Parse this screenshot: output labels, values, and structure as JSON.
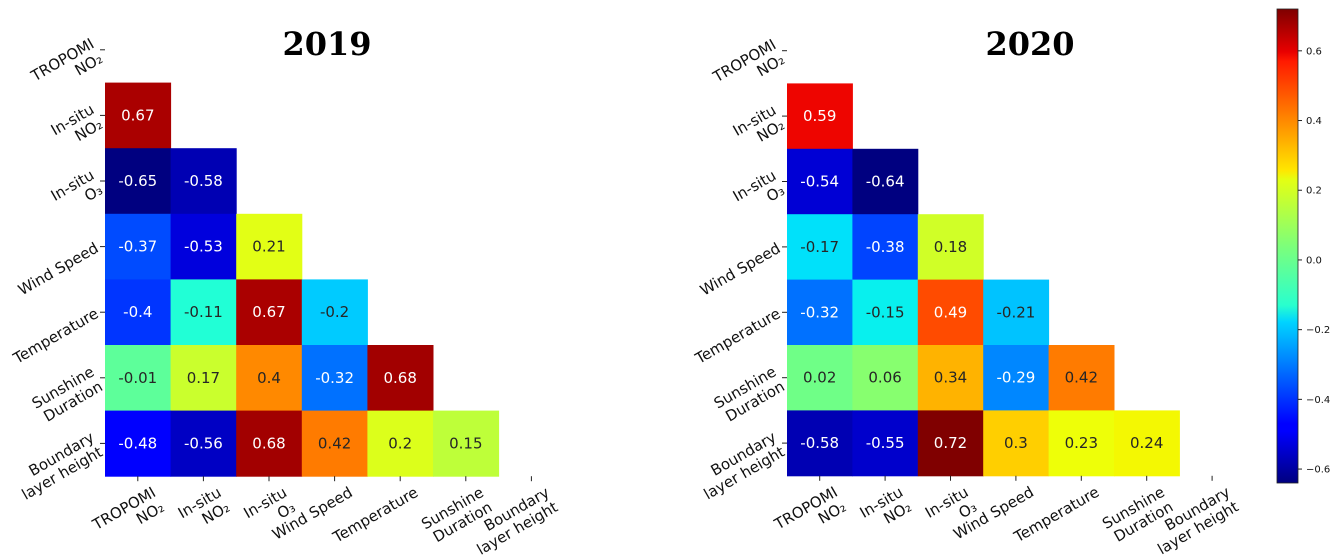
{
  "chart_data": [
    {
      "type": "heatmap",
      "title": "2019",
      "labels": [
        "TROPOMI NO₂",
        "In-situ NO₂",
        "In-situ O₃",
        "Wind Speed",
        "Temperature",
        "Sunshine Duration",
        "Boundary layer height"
      ],
      "label_lines": [
        [
          "TROPOMI",
          "NO₂"
        ],
        [
          "In-situ",
          "NO₂"
        ],
        [
          "In-situ",
          "O₃"
        ],
        [
          "Wind Speed"
        ],
        [
          "Temperature"
        ],
        [
          "Sunshine",
          "Duration"
        ],
        [
          "Boundary",
          "layer height"
        ]
      ],
      "lower_triangle": [
        [],
        [
          0.67
        ],
        [
          -0.65,
          -0.58
        ],
        [
          -0.37,
          -0.53,
          0.21
        ],
        [
          -0.4,
          -0.11,
          0.67,
          -0.2
        ],
        [
          -0.01,
          0.17,
          0.4,
          -0.32,
          0.68
        ],
        [
          -0.48,
          -0.56,
          0.68,
          0.42,
          0.2,
          0.15
        ]
      ]
    },
    {
      "type": "heatmap",
      "title": "2020",
      "labels": [
        "TROPOMI NO₂",
        "In-situ NO₂",
        "In-situ O₃",
        "Wind Speed",
        "Temperature",
        "Sunshine Duration",
        "Boundary layer height"
      ],
      "label_lines": [
        [
          "TROPOMI",
          "NO₂"
        ],
        [
          "In-situ",
          "NO₂"
        ],
        [
          "In-situ",
          "O₃"
        ],
        [
          "Wind Speed"
        ],
        [
          "Temperature"
        ],
        [
          "Sunshine",
          "Duration"
        ],
        [
          "Boundary",
          "layer height"
        ]
      ],
      "lower_triangle": [
        [],
        [
          0.59
        ],
        [
          -0.54,
          -0.64
        ],
        [
          -0.17,
          -0.38,
          0.18
        ],
        [
          -0.32,
          -0.15,
          0.49,
          -0.21
        ],
        [
          0.02,
          0.06,
          0.34,
          -0.29,
          0.42
        ],
        [
          -0.58,
          -0.55,
          0.72,
          0.3,
          0.23,
          0.24
        ]
      ]
    }
  ],
  "colorbar": {
    "colormap": "jet",
    "vmin": -0.64,
    "vmax": 0.72,
    "ticks": [
      0.6,
      0.4,
      0.2,
      0.0,
      -0.2,
      -0.4,
      -0.6
    ],
    "tick_labels": [
      "0.6",
      "0.4",
      "0.2",
      "0.0",
      "−0.2",
      "−0.4",
      "−0.6"
    ]
  }
}
